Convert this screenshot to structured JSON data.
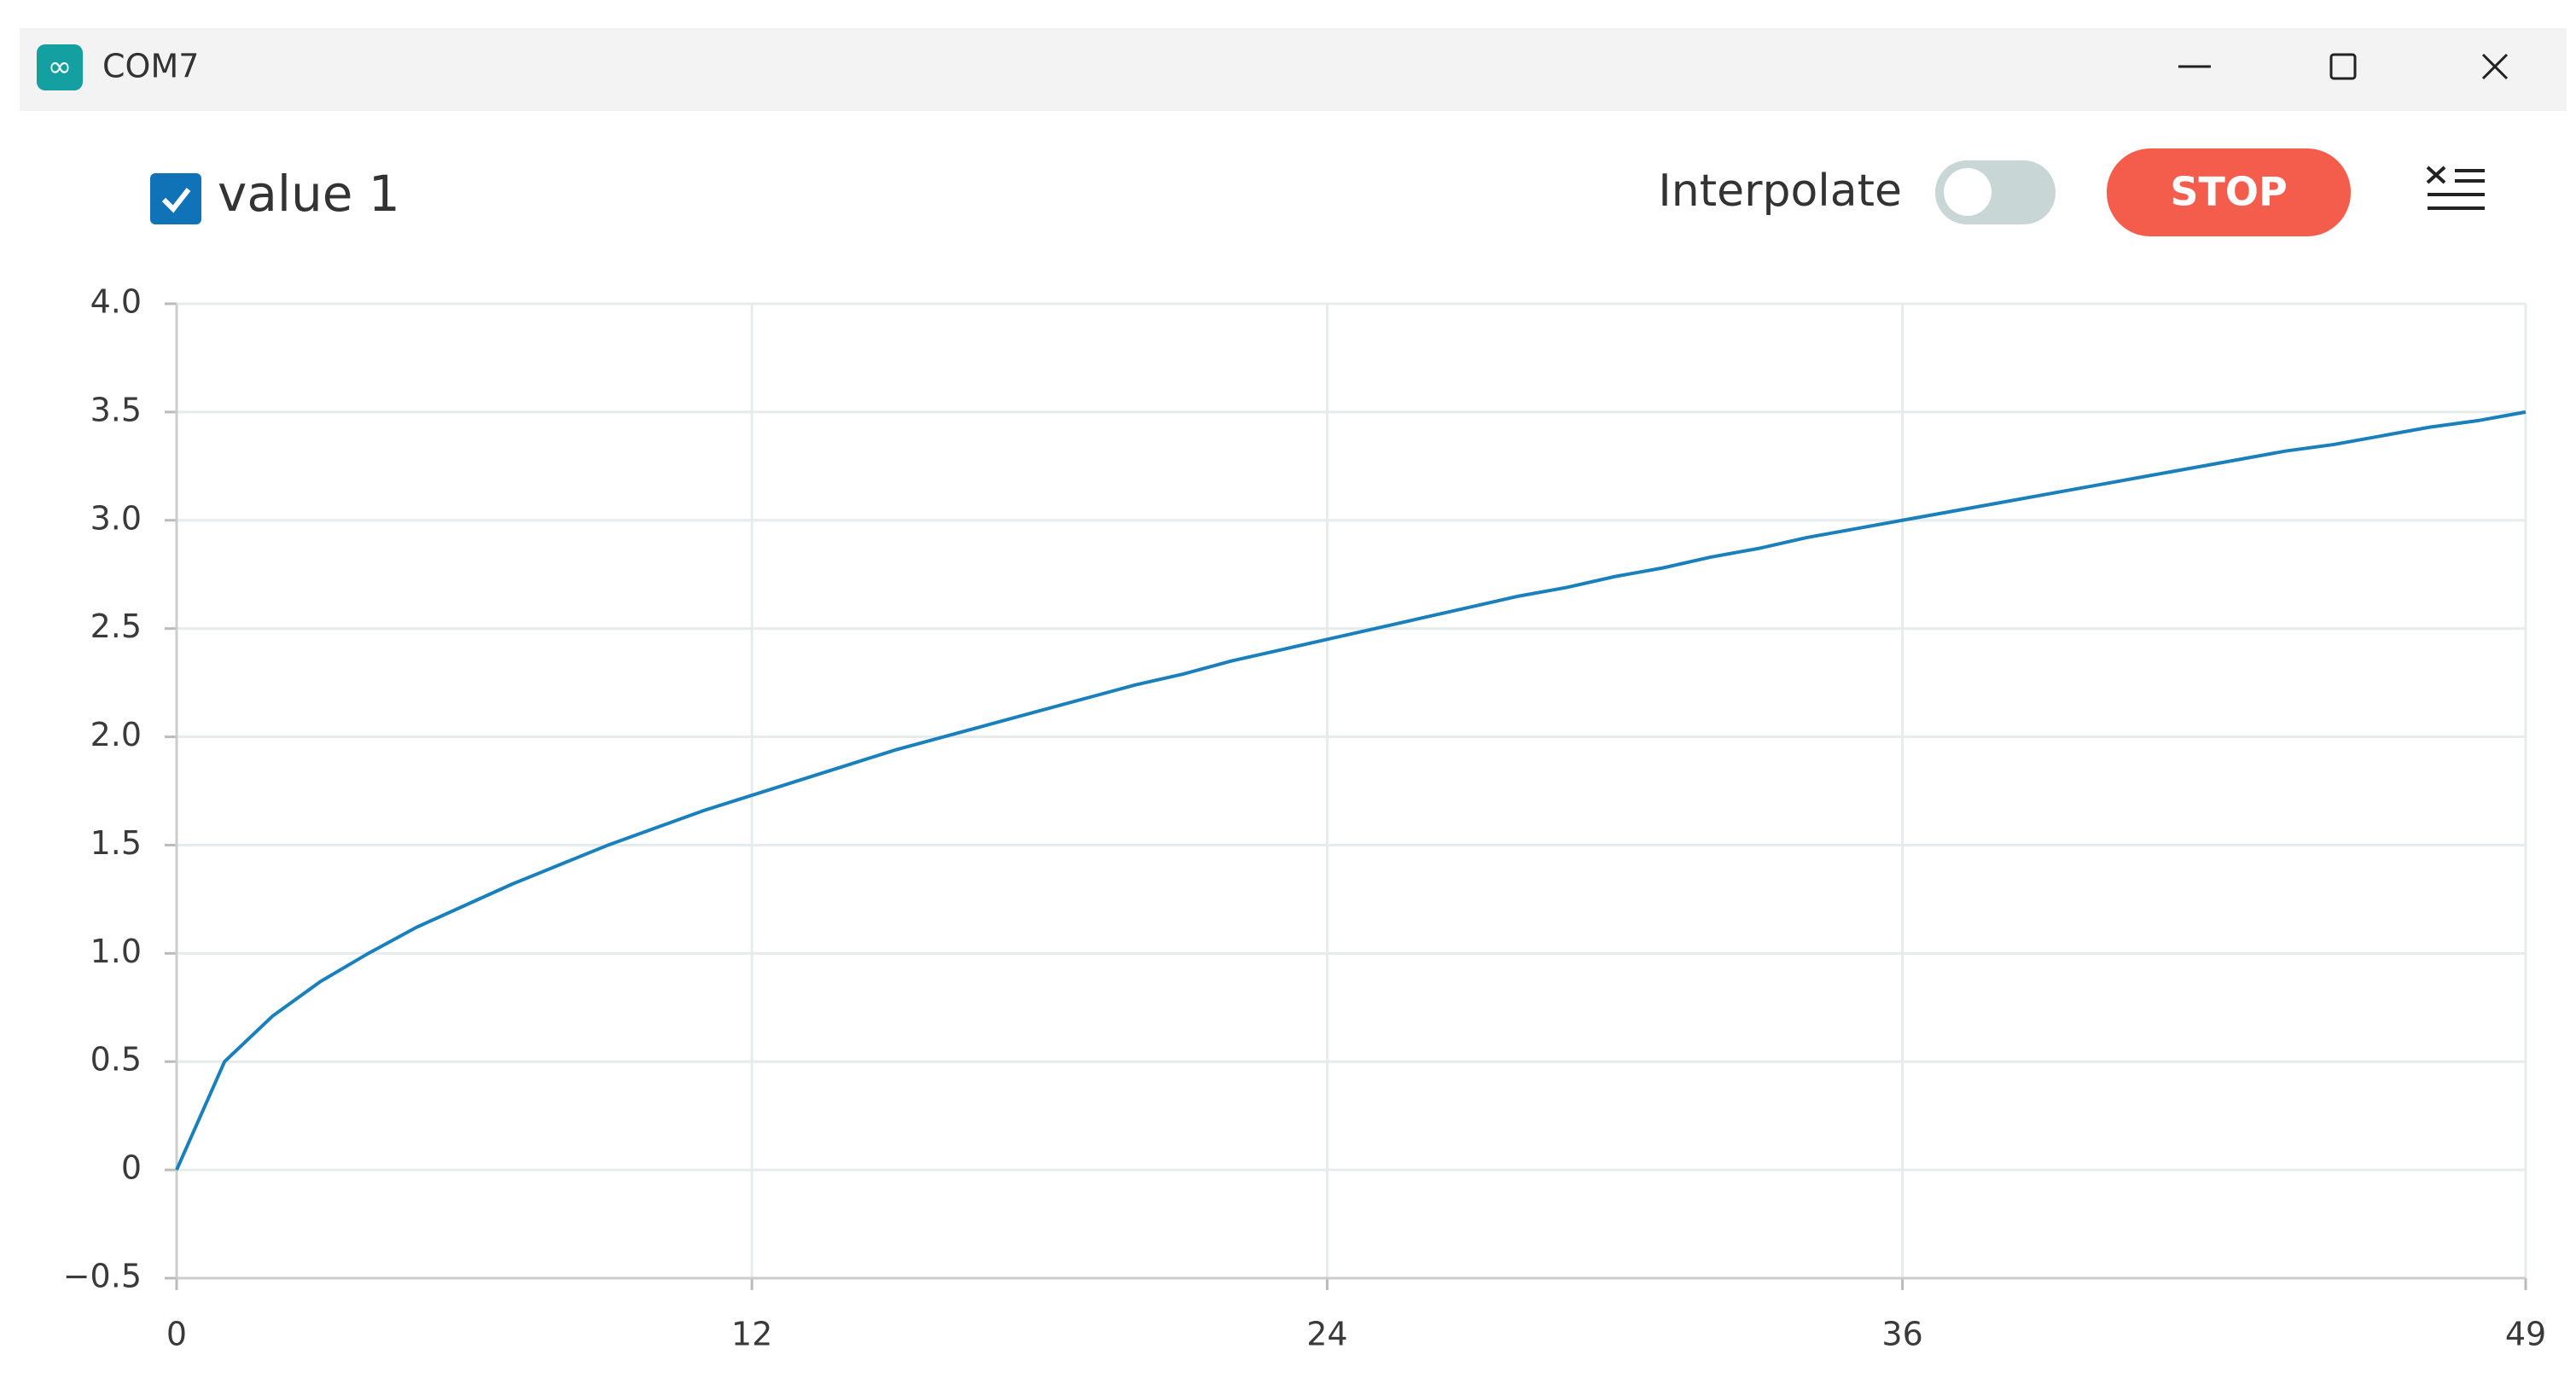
{
  "window": {
    "title": "COM7"
  },
  "controls": {
    "interpolate_label": "Interpolate",
    "interpolate": false,
    "stop_label": "STOP"
  },
  "chart_data": {
    "type": "line",
    "x": [
      0,
      1,
      2,
      3,
      4,
      5,
      6,
      7,
      8,
      9,
      10,
      11,
      12,
      13,
      14,
      15,
      16,
      17,
      18,
      19,
      20,
      21,
      22,
      23,
      24,
      25,
      26,
      27,
      28,
      29,
      30,
      31,
      32,
      33,
      34,
      35,
      36,
      37,
      38,
      39,
      40,
      41,
      42,
      43,
      44,
      45,
      46,
      47,
      48,
      49
    ],
    "series": [
      {
        "name": "value 1",
        "color": "#1a80bb",
        "values": [
          0,
          0.5,
          0.71,
          0.87,
          1.0,
          1.12,
          1.22,
          1.32,
          1.41,
          1.5,
          1.58,
          1.66,
          1.73,
          1.8,
          1.87,
          1.94,
          2.0,
          2.06,
          2.12,
          2.18,
          2.24,
          2.29,
          2.35,
          2.4,
          2.45,
          2.5,
          2.55,
          2.6,
          2.65,
          2.69,
          2.74,
          2.78,
          2.83,
          2.87,
          2.92,
          2.96,
          3.0,
          3.04,
          3.08,
          3.12,
          3.16,
          3.2,
          3.24,
          3.28,
          3.32,
          3.35,
          3.39,
          3.43,
          3.46,
          3.5
        ]
      }
    ],
    "xlim": [
      0,
      49
    ],
    "xticks": [
      0,
      12,
      24,
      36,
      49
    ],
    "ylim": [
      -0.5,
      4.0
    ],
    "yticks": [
      {
        "value": -0.5,
        "label": "−0.5"
      },
      0,
      0.5,
      {
        "value": 1.0,
        "label": "1.0"
      },
      1.5,
      {
        "value": 2.0,
        "label": "2.0"
      },
      2.5,
      {
        "value": 3.0,
        "label": "3.0"
      },
      3.5,
      {
        "value": 4.0,
        "label": "4.0"
      }
    ],
    "grid": true
  }
}
